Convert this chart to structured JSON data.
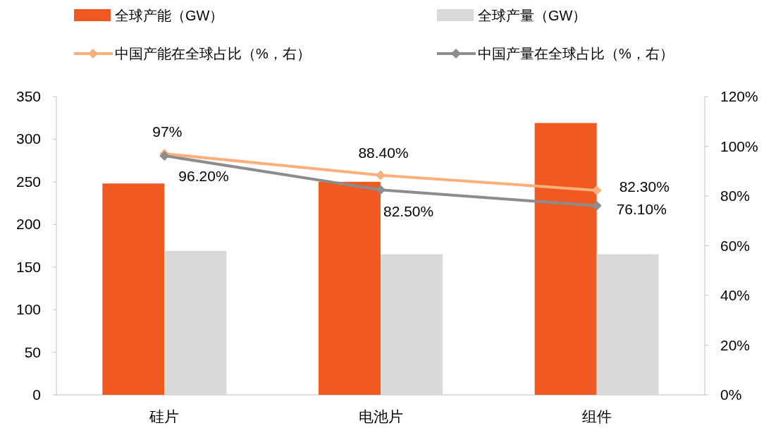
{
  "chart_data": {
    "type": "bar",
    "categories": [
      "硅片",
      "电池片",
      "组件"
    ],
    "series": [
      {
        "name": "全球产能（GW）",
        "color": "#f05a22",
        "values": [
          248,
          250,
          319
        ]
      },
      {
        "name": "全球产量（GW）",
        "color": "#d9d9d9",
        "values": [
          169,
          165,
          165
        ]
      },
      {
        "name": "中国产能在全球占比（%，右）",
        "type": "line",
        "axis": "y2",
        "color": "#fbb07c",
        "values": [
          97,
          88.4,
          82.3
        ],
        "value_labels": [
          "97%",
          "88.40%",
          "82.30%"
        ]
      },
      {
        "name": "中国产量在全球占比（%，右）",
        "type": "line",
        "axis": "y2",
        "color": "#8c8c8c",
        "values": [
          96.2,
          82.5,
          76.1
        ],
        "value_labels": [
          "96.20%",
          "82.50%",
          "76.10%"
        ]
      }
    ],
    "ylim": [
      0,
      350
    ],
    "yticks": [
      0,
      50,
      100,
      150,
      200,
      250,
      300,
      350
    ],
    "y2lim": [
      0,
      120
    ],
    "y2ticks": [
      {
        "value": 0,
        "label": "0%"
      },
      {
        "value": 20,
        "label": "20%"
      },
      {
        "value": 40,
        "label": "40%"
      },
      {
        "value": 60,
        "label": "60%"
      },
      {
        "value": 80,
        "label": "80%"
      },
      {
        "value": 100,
        "label": "100%"
      },
      {
        "value": 120,
        "label": "120%"
      }
    ],
    "legend": "top",
    "marker": "diamond",
    "line_style": "solid",
    "grid": false
  }
}
